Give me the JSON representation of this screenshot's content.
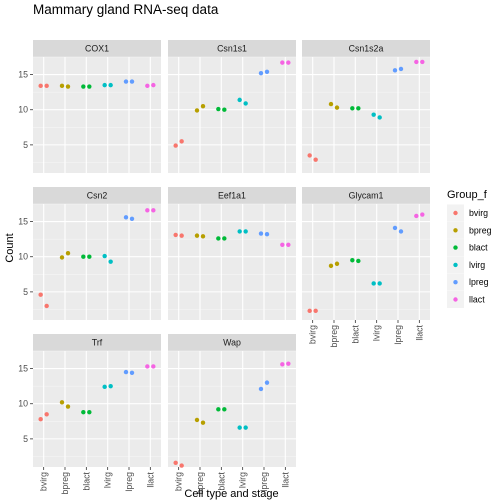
{
  "chart_data": {
    "type": "scatter",
    "title": "Mammary gland RNA-seq data",
    "xlabel": "Cell type and stage",
    "ylabel": "Count",
    "categories": [
      "bvirg",
      "bpreg",
      "blact",
      "lvirg",
      "lpreg",
      "llact"
    ],
    "ylim": [
      1,
      17.5
    ],
    "yticks": [
      5,
      10,
      15
    ],
    "grid": true,
    "legend": {
      "title": "Group_f",
      "placement": "right",
      "entries": [
        {
          "label": "bvirg",
          "color": "#F8766D"
        },
        {
          "label": "bpreg",
          "color": "#B79F00"
        },
        {
          "label": "blact",
          "color": "#00BA38"
        },
        {
          "label": "lvirg",
          "color": "#00BFC4"
        },
        {
          "label": "lpreg",
          "color": "#619CFF"
        },
        {
          "label": "llact",
          "color": "#F564E3"
        }
      ]
    },
    "facets": [
      {
        "name": "COX1",
        "points": [
          {
            "x": "bvirg",
            "y": 13.4
          },
          {
            "x": "bvirg",
            "y": 13.4
          },
          {
            "x": "bpreg",
            "y": 13.4
          },
          {
            "x": "bpreg",
            "y": 13.3
          },
          {
            "x": "blact",
            "y": 13.3
          },
          {
            "x": "blact",
            "y": 13.3
          },
          {
            "x": "lvirg",
            "y": 13.5
          },
          {
            "x": "lvirg",
            "y": 13.5
          },
          {
            "x": "lpreg",
            "y": 14.0
          },
          {
            "x": "lpreg",
            "y": 14.0
          },
          {
            "x": "llact",
            "y": 13.4
          },
          {
            "x": "llact",
            "y": 13.5
          }
        ]
      },
      {
        "name": "Csn1s1",
        "points": [
          {
            "x": "bvirg",
            "y": 4.9
          },
          {
            "x": "bvirg",
            "y": 5.5
          },
          {
            "x": "bpreg",
            "y": 9.9
          },
          {
            "x": "bpreg",
            "y": 10.5
          },
          {
            "x": "blact",
            "y": 10.1
          },
          {
            "x": "blact",
            "y": 10.0
          },
          {
            "x": "lvirg",
            "y": 11.4
          },
          {
            "x": "lvirg",
            "y": 10.9
          },
          {
            "x": "lpreg",
            "y": 15.2
          },
          {
            "x": "lpreg",
            "y": 15.4
          },
          {
            "x": "llact",
            "y": 16.7
          },
          {
            "x": "llact",
            "y": 16.7
          }
        ]
      },
      {
        "name": "Csn1s2a",
        "points": [
          {
            "x": "bvirg",
            "y": 3.5
          },
          {
            "x": "bvirg",
            "y": 2.9
          },
          {
            "x": "bpreg",
            "y": 10.8
          },
          {
            "x": "bpreg",
            "y": 10.3
          },
          {
            "x": "blact",
            "y": 10.2
          },
          {
            "x": "blact",
            "y": 10.2
          },
          {
            "x": "lvirg",
            "y": 9.3
          },
          {
            "x": "lvirg",
            "y": 8.9
          },
          {
            "x": "lpreg",
            "y": 15.6
          },
          {
            "x": "lpreg",
            "y": 15.8
          },
          {
            "x": "llact",
            "y": 16.8
          },
          {
            "x": "llact",
            "y": 16.8
          }
        ]
      },
      {
        "name": "Csn2",
        "points": [
          {
            "x": "bvirg",
            "y": 4.6
          },
          {
            "x": "bvirg",
            "y": 3.0
          },
          {
            "x": "bpreg",
            "y": 9.9
          },
          {
            "x": "bpreg",
            "y": 10.5
          },
          {
            "x": "blact",
            "y": 10.0
          },
          {
            "x": "blact",
            "y": 10.0
          },
          {
            "x": "lvirg",
            "y": 10.1
          },
          {
            "x": "lvirg",
            "y": 9.3
          },
          {
            "x": "lpreg",
            "y": 15.6
          },
          {
            "x": "lpreg",
            "y": 15.4
          },
          {
            "x": "llact",
            "y": 16.6
          },
          {
            "x": "llact",
            "y": 16.6
          }
        ]
      },
      {
        "name": "Eef1a1",
        "points": [
          {
            "x": "bvirg",
            "y": 13.1
          },
          {
            "x": "bvirg",
            "y": 13.0
          },
          {
            "x": "bpreg",
            "y": 13.0
          },
          {
            "x": "bpreg",
            "y": 12.9
          },
          {
            "x": "blact",
            "y": 12.6
          },
          {
            "x": "blact",
            "y": 12.6
          },
          {
            "x": "lvirg",
            "y": 13.6
          },
          {
            "x": "lvirg",
            "y": 13.6
          },
          {
            "x": "lpreg",
            "y": 13.3
          },
          {
            "x": "lpreg",
            "y": 13.2
          },
          {
            "x": "llact",
            "y": 11.7
          },
          {
            "x": "llact",
            "y": 11.7
          }
        ]
      },
      {
        "name": "Glycam1",
        "points": [
          {
            "x": "bvirg",
            "y": 2.3
          },
          {
            "x": "bvirg",
            "y": 2.3
          },
          {
            "x": "bpreg",
            "y": 8.7
          },
          {
            "x": "bpreg",
            "y": 9.0
          },
          {
            "x": "blact",
            "y": 9.5
          },
          {
            "x": "blact",
            "y": 9.4
          },
          {
            "x": "lvirg",
            "y": 6.2
          },
          {
            "x": "lvirg",
            "y": 6.2
          },
          {
            "x": "lpreg",
            "y": 14.1
          },
          {
            "x": "lpreg",
            "y": 13.6
          },
          {
            "x": "llact",
            "y": 15.8
          },
          {
            "x": "llact",
            "y": 16.0
          }
        ]
      },
      {
        "name": "Trf",
        "points": [
          {
            "x": "bvirg",
            "y": 7.8
          },
          {
            "x": "bvirg",
            "y": 8.5
          },
          {
            "x": "bpreg",
            "y": 10.2
          },
          {
            "x": "bpreg",
            "y": 9.6
          },
          {
            "x": "blact",
            "y": 8.8
          },
          {
            "x": "blact",
            "y": 8.8
          },
          {
            "x": "lvirg",
            "y": 12.4
          },
          {
            "x": "lvirg",
            "y": 12.5
          },
          {
            "x": "lpreg",
            "y": 14.5
          },
          {
            "x": "lpreg",
            "y": 14.4
          },
          {
            "x": "llact",
            "y": 15.3
          },
          {
            "x": "llact",
            "y": 15.3
          }
        ]
      },
      {
        "name": "Wap",
        "points": [
          {
            "x": "bvirg",
            "y": 1.6
          },
          {
            "x": "bvirg",
            "y": 1.2
          },
          {
            "x": "bpreg",
            "y": 7.7
          },
          {
            "x": "bpreg",
            "y": 7.3
          },
          {
            "x": "blact",
            "y": 9.2
          },
          {
            "x": "blact",
            "y": 9.2
          },
          {
            "x": "lvirg",
            "y": 6.6
          },
          {
            "x": "lvirg",
            "y": 6.6
          },
          {
            "x": "lpreg",
            "y": 12.1
          },
          {
            "x": "lpreg",
            "y": 13.0
          },
          {
            "x": "llact",
            "y": 15.6
          },
          {
            "x": "llact",
            "y": 15.7
          }
        ]
      }
    ]
  }
}
